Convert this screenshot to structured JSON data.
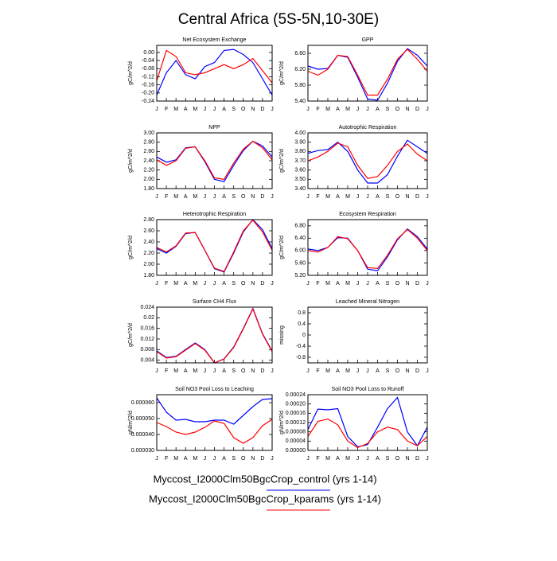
{
  "title": "Central Africa (5S-5N,10-30E)",
  "chart_data": [
    {
      "type": "line",
      "title": "Net Ecosystem Exchange",
      "ylabel": "gC/m^2/d",
      "categories": [
        "J",
        "F",
        "M",
        "A",
        "M",
        "J",
        "J",
        "A",
        "S",
        "O",
        "N",
        "D",
        "J"
      ],
      "ylim": [
        -0.24,
        0.035
      ],
      "yticks": [
        {
          "value": -0.24,
          "label": "-0.24"
        },
        {
          "value": -0.2,
          "label": "-0.20"
        },
        {
          "value": -0.16,
          "label": "-0.16"
        },
        {
          "value": -0.12,
          "label": "-0.12"
        },
        {
          "value": -0.08,
          "label": "-0.08"
        },
        {
          "value": -0.04,
          "label": "-0.04"
        },
        {
          "value": 0,
          "label": "0.00"
        }
      ],
      "series": [
        {
          "name": "Myccost_I2000Clm50BgcCrop_control (yrs 1-14)",
          "color": "#0000ff",
          "values": [
            -0.21,
            -0.1,
            -0.04,
            -0.11,
            -0.13,
            -0.07,
            -0.05,
            0.01,
            0.015,
            -0.01,
            -0.05,
            -0.13,
            -0.21
          ]
        },
        {
          "name": "Myccost_I2000Clm50BgcCrop_kparams (yrs 1-14)",
          "color": "#ff0000",
          "values": [
            -0.14,
            0.01,
            -0.02,
            -0.1,
            -0.11,
            -0.1,
            -0.08,
            -0.06,
            -0.08,
            -0.06,
            -0.03,
            -0.09,
            -0.15
          ]
        }
      ]
    },
    {
      "type": "line",
      "title": "GPP",
      "ylabel": "gC/m^2/d",
      "categories": [
        "J",
        "F",
        "M",
        "A",
        "M",
        "J",
        "J",
        "A",
        "S",
        "O",
        "N",
        "D",
        "J"
      ],
      "ylim": [
        5.4,
        6.8
      ],
      "yticks": [
        {
          "value": 5.4,
          "label": "5.40"
        },
        {
          "value": 5.8,
          "label": "5.80"
        },
        {
          "value": 6.2,
          "label": "6.20"
        },
        {
          "value": 6.6,
          "label": "6.60"
        }
      ],
      "series": [
        {
          "name": "Myccost_I2000Clm50BgcCrop_control (yrs 1-14)",
          "color": "#0000ff",
          "values": [
            6.28,
            6.2,
            6.22,
            6.55,
            6.5,
            6.0,
            5.45,
            5.42,
            5.85,
            6.4,
            6.72,
            6.55,
            6.28
          ]
        },
        {
          "name": "Myccost_I2000Clm50BgcCrop_kparams (yrs 1-14)",
          "color": "#ff0000",
          "values": [
            6.15,
            6.05,
            6.2,
            6.55,
            6.52,
            6.05,
            5.55,
            5.55,
            5.95,
            6.45,
            6.7,
            6.45,
            6.15
          ]
        }
      ]
    },
    {
      "type": "line",
      "title": "NPP",
      "ylabel": "gC/m^2/d",
      "categories": [
        "J",
        "F",
        "M",
        "A",
        "M",
        "J",
        "J",
        "A",
        "S",
        "O",
        "N",
        "D",
        "J"
      ],
      "ylim": [
        1.8,
        3.0
      ],
      "yticks": [
        {
          "value": 1.8,
          "label": "1.80"
        },
        {
          "value": 2.0,
          "label": "2.00"
        },
        {
          "value": 2.2,
          "label": "2.20"
        },
        {
          "value": 2.4,
          "label": "2.40"
        },
        {
          "value": 2.6,
          "label": "2.60"
        },
        {
          "value": 2.8,
          "label": "2.80"
        },
        {
          "value": 3.0,
          "label": "3.00"
        }
      ],
      "series": [
        {
          "name": "Myccost_I2000Clm50BgcCrop_control (yrs 1-14)",
          "color": "#0000ff",
          "values": [
            2.48,
            2.37,
            2.42,
            2.68,
            2.7,
            2.38,
            2.0,
            1.95,
            2.3,
            2.62,
            2.82,
            2.72,
            2.48
          ]
        },
        {
          "name": "Myccost_I2000Clm50BgcCrop_kparams (yrs 1-14)",
          "color": "#ff0000",
          "values": [
            2.42,
            2.3,
            2.4,
            2.67,
            2.7,
            2.4,
            2.03,
            2.0,
            2.35,
            2.65,
            2.82,
            2.68,
            2.42
          ]
        }
      ]
    },
    {
      "type": "line",
      "title": "Autotrophic Respiration",
      "ylabel": "gC/m^2/d",
      "categories": [
        "J",
        "F",
        "M",
        "A",
        "M",
        "J",
        "J",
        "A",
        "S",
        "O",
        "N",
        "D",
        "J"
      ],
      "ylim": [
        3.4,
        4.0
      ],
      "yticks": [
        {
          "value": 3.4,
          "label": "3.40"
        },
        {
          "value": 3.5,
          "label": "3.50"
        },
        {
          "value": 3.6,
          "label": "3.60"
        },
        {
          "value": 3.7,
          "label": "3.70"
        },
        {
          "value": 3.8,
          "label": "3.80"
        },
        {
          "value": 3.9,
          "label": "3.90"
        },
        {
          "value": 4.0,
          "label": "4.00"
        }
      ],
      "series": [
        {
          "name": "Myccost_I2000Clm50BgcCrop_control (yrs 1-14)",
          "color": "#0000ff",
          "values": [
            3.78,
            3.81,
            3.82,
            3.9,
            3.8,
            3.6,
            3.46,
            3.46,
            3.55,
            3.75,
            3.92,
            3.85,
            3.78
          ]
        },
        {
          "name": "Myccost_I2000Clm50BgcCrop_kparams (yrs 1-14)",
          "color": "#ff0000",
          "values": [
            3.7,
            3.74,
            3.8,
            3.89,
            3.85,
            3.65,
            3.51,
            3.53,
            3.65,
            3.8,
            3.88,
            3.77,
            3.7
          ]
        }
      ]
    },
    {
      "type": "line",
      "title": "Heterotrophic Respiration",
      "ylabel": "gC/m^2/d",
      "categories": [
        "J",
        "F",
        "M",
        "A",
        "M",
        "J",
        "J",
        "A",
        "S",
        "O",
        "N",
        "D",
        "J"
      ],
      "ylim": [
        1.8,
        2.8
      ],
      "yticks": [
        {
          "value": 1.8,
          "label": "1.80"
        },
        {
          "value": 2.0,
          "label": "2.00"
        },
        {
          "value": 2.2,
          "label": "2.20"
        },
        {
          "value": 2.4,
          "label": "2.40"
        },
        {
          "value": 2.6,
          "label": "2.60"
        },
        {
          "value": 2.8,
          "label": "2.80"
        }
      ],
      "series": [
        {
          "name": "Myccost_I2000Clm50BgcCrop_control (yrs 1-14)",
          "color": "#0000ff",
          "values": [
            2.28,
            2.2,
            2.32,
            2.55,
            2.57,
            2.25,
            1.92,
            1.86,
            2.2,
            2.58,
            2.8,
            2.62,
            2.28
          ]
        },
        {
          "name": "Myccost_I2000Clm50BgcCrop_kparams (yrs 1-14)",
          "color": "#ff0000",
          "values": [
            2.3,
            2.22,
            2.33,
            2.56,
            2.57,
            2.25,
            1.93,
            1.87,
            2.22,
            2.6,
            2.79,
            2.58,
            2.25
          ]
        }
      ]
    },
    {
      "type": "line",
      "title": "Ecosystem Respiration",
      "ylabel": "gC/m^2/d",
      "categories": [
        "J",
        "F",
        "M",
        "A",
        "M",
        "J",
        "J",
        "A",
        "S",
        "O",
        "N",
        "D",
        "J"
      ],
      "ylim": [
        5.2,
        7.0
      ],
      "yticks": [
        {
          "value": 5.2,
          "label": "5.20"
        },
        {
          "value": 5.6,
          "label": "5.60"
        },
        {
          "value": 6.0,
          "label": "6.00"
        },
        {
          "value": 6.4,
          "label": "6.40"
        },
        {
          "value": 6.8,
          "label": "6.80"
        }
      ],
      "series": [
        {
          "name": "Myccost_I2000Clm50BgcCrop_control (yrs 1-14)",
          "color": "#0000ff",
          "values": [
            6.05,
            6.0,
            6.1,
            6.42,
            6.4,
            6.0,
            5.4,
            5.35,
            5.8,
            6.35,
            6.7,
            6.45,
            6.05
          ]
        },
        {
          "name": "Myccost_I2000Clm50BgcCrop_kparams (yrs 1-14)",
          "color": "#ff0000",
          "values": [
            6.0,
            5.95,
            6.1,
            6.45,
            6.38,
            6.0,
            5.45,
            5.42,
            5.85,
            6.38,
            6.68,
            6.4,
            6.0
          ]
        }
      ]
    },
    {
      "type": "line",
      "title": "Surface CH4 Flux",
      "ylabel": "gC/m^2/d",
      "categories": [
        "J",
        "F",
        "M",
        "A",
        "M",
        "J",
        "J",
        "A",
        "S",
        "O",
        "N",
        "D",
        "J"
      ],
      "ylim": [
        0.003,
        0.024
      ],
      "yticks": [
        0.004,
        0.008,
        0.012,
        0.016,
        0.02,
        {
          "value": 0.024,
          "label": "0.024"
        }
      ],
      "series": [
        {
          "name": "Myccost_I2000Clm50BgcCrop_control (yrs 1-14)",
          "color": "#0000ff",
          "values": [
            0.0075,
            0.005,
            0.0055,
            0.008,
            0.0105,
            0.008,
            0.003,
            0.0045,
            0.009,
            0.016,
            0.0235,
            0.014,
            0.0075
          ]
        },
        {
          "name": "Myccost_I2000Clm50BgcCrop_kparams (yrs 1-14)",
          "color": "#ff0000",
          "values": [
            0.0073,
            0.0048,
            0.0053,
            0.0078,
            0.0103,
            0.0078,
            0.003,
            0.0044,
            0.0088,
            0.0158,
            0.0233,
            0.0138,
            0.0073
          ]
        }
      ]
    },
    {
      "type": "line",
      "title": "Leached Mineral Nitrogen",
      "ylabel": "missing",
      "categories": [
        "J",
        "F",
        "M",
        "A",
        "M",
        "J",
        "J",
        "A",
        "S",
        "O",
        "N",
        "D",
        "J"
      ],
      "ylim": [
        -1,
        1
      ],
      "yticks": [
        -0.8,
        -0.4,
        0,
        0.4,
        0.8
      ],
      "series": []
    },
    {
      "type": "line",
      "title": "Soil NO3 Pool Loss to Leaching",
      "ylabel": "gN/m^2/d",
      "categories": [
        "J",
        "F",
        "M",
        "A",
        "M",
        "J",
        "J",
        "A",
        "S",
        "O",
        "N",
        "D",
        "J"
      ],
      "ylim": [
        3e-05,
        6.5e-05
      ],
      "yticks": [
        {
          "value": 3e-05,
          "label": "0.000030"
        },
        {
          "value": 4e-05,
          "label": "0.000040"
        },
        {
          "value": 5e-05,
          "label": "0.000050"
        },
        {
          "value": 6e-05,
          "label": "0.000060"
        }
      ],
      "series": [
        {
          "name": "Myccost_I2000Clm50BgcCrop_control (yrs 1-14)",
          "color": "#0000ff",
          "values": [
            6.3e-05,
            5.4e-05,
            4.9e-05,
            4.95e-05,
            4.8e-05,
            4.8e-05,
            4.9e-05,
            4.9e-05,
            4.65e-05,
            5.2e-05,
            5.75e-05,
            6.2e-05,
            6.25e-05
          ]
        },
        {
          "name": "Myccost_I2000Clm50BgcCrop_kparams (yrs 1-14)",
          "color": "#ff0000",
          "values": [
            4.75e-05,
            4.5e-05,
            4.15e-05,
            4e-05,
            4.15e-05,
            4.45e-05,
            4.85e-05,
            4.7e-05,
            3.8e-05,
            3.45e-05,
            3.8e-05,
            4.55e-05,
            4.95e-05
          ]
        }
      ]
    },
    {
      "type": "line",
      "title": "Soil NO3 Pool Loss to Runoff",
      "ylabel": "gN/m^2/d",
      "categories": [
        "J",
        "F",
        "M",
        "A",
        "M",
        "J",
        "J",
        "A",
        "S",
        "O",
        "N",
        "D",
        "J"
      ],
      "ylim": [
        0,
        0.00024
      ],
      "yticks": [
        {
          "value": 0,
          "label": "0.00000"
        },
        {
          "value": 4e-05,
          "label": "0.00004"
        },
        {
          "value": 8e-05,
          "label": "0.00008"
        },
        {
          "value": 0.00012,
          "label": "0.00012"
        },
        {
          "value": 0.00016,
          "label": "0.00016"
        },
        {
          "value": 0.0002,
          "label": "0.00020"
        },
        {
          "value": 0.00024,
          "label": "0.00024"
        }
      ],
      "series": [
        {
          "name": "Myccost_I2000Clm50BgcCrop_control (yrs 1-14)",
          "color": "#0000ff",
          "values": [
            9e-05,
            0.000178,
            0.000175,
            0.00018,
            6e-05,
            1.5e-05,
            2.5e-05,
            0.0001,
            0.00018,
            0.000228,
            8e-05,
            2e-05,
            0.0001
          ]
        },
        {
          "name": "Myccost_I2000Clm50BgcCrop_kparams (yrs 1-14)",
          "color": "#ff0000",
          "values": [
            6e-05,
            0.000125,
            0.000135,
            0.00011,
            4e-05,
            1.2e-05,
            3e-05,
            8e-05,
            0.0001,
            9e-05,
            4e-05,
            2e-05,
            6e-05
          ]
        }
      ]
    }
  ]
}
